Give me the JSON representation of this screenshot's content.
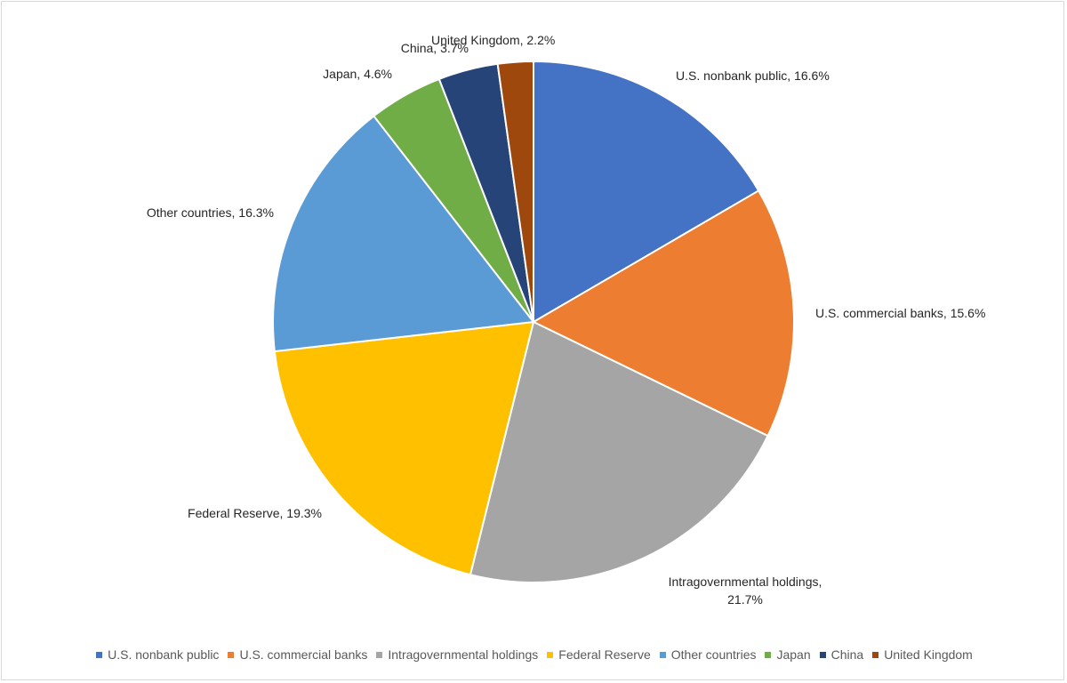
{
  "chart_data": {
    "type": "pie",
    "title": "",
    "categories": [
      "U.S. nonbank public",
      "U.S. commercial banks",
      "Intragovernmental holdings",
      "Federal Reserve",
      "Other countries",
      "Japan",
      "China",
      "United Kingdom"
    ],
    "values": [
      16.6,
      15.6,
      21.7,
      19.3,
      16.3,
      4.6,
      3.7,
      2.2
    ],
    "unit": "%",
    "colors": [
      "#4472C4",
      "#ED7D31",
      "#A5A5A5",
      "#FFC000",
      "#5B9BD5",
      "#70AD47",
      "#264478",
      "#9E480E"
    ],
    "slice_labels": [
      [
        "U.S. nonbank public, 16.6%"
      ],
      [
        "U.S. commercial banks, 15.6%"
      ],
      [
        "Intragovernmental holdings,",
        "21.7%"
      ],
      [
        "Federal Reserve, 19.3%"
      ],
      [
        "Other countries, 16.3%"
      ],
      [
        "Japan, 4.6%"
      ],
      [
        "China, 3.7%"
      ],
      [
        "United Kingdom, 2.2%"
      ]
    ],
    "legend_position": "bottom",
    "start_angle": "12 o'clock",
    "direction": "clockwise"
  }
}
